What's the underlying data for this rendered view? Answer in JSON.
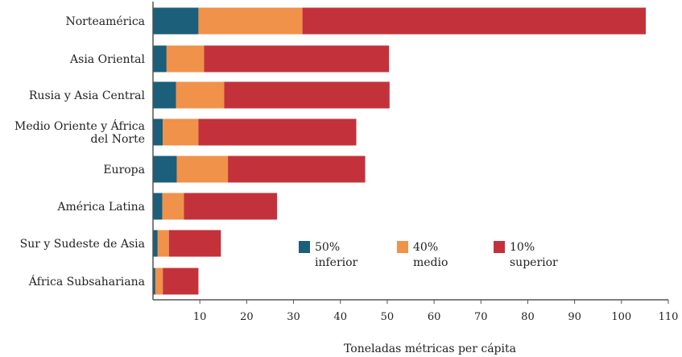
{
  "chart_data": {
    "type": "bar",
    "orientation": "horizontal",
    "stacked": true,
    "categories": [
      [
        "Norteamérica"
      ],
      [
        "Asia Oriental"
      ],
      [
        "Rusia y Asia Central"
      ],
      [
        "Medio Oriente y África",
        "del Norte"
      ],
      [
        "Europa"
      ],
      [
        "América Latina"
      ],
      [
        "Sur y Sudeste de Asia"
      ],
      [
        "África Subsahariana"
      ]
    ],
    "series": [
      {
        "name": "50% inferior",
        "name_lines": [
          "50%",
          "inferior"
        ],
        "color": "#1b5f7a",
        "values": [
          9.7,
          2.9,
          4.9,
          2.1,
          5.1,
          2.0,
          1.0,
          0.5
        ]
      },
      {
        "name": "40% medio",
        "name_lines": [
          "40%",
          "medio"
        ],
        "color": "#f0924a",
        "values": [
          22.2,
          8.0,
          10.3,
          7.6,
          10.9,
          4.6,
          2.4,
          1.6
        ]
      },
      {
        "name": "10% superior",
        "name_lines": [
          "10%",
          "superior"
        ],
        "color": "#c3323a",
        "values": [
          73.3,
          39.5,
          35.3,
          33.7,
          29.3,
          19.9,
          11.1,
          7.6
        ]
      }
    ],
    "xlim": [
      0,
      110
    ],
    "xticks": [
      10,
      20,
      30,
      40,
      50,
      60,
      70,
      80,
      90,
      100,
      110
    ],
    "xlabel": "Toneladas métricas per cápita",
    "ylabel": "",
    "title": "",
    "grid": false,
    "legend_position": "lower-right"
  }
}
